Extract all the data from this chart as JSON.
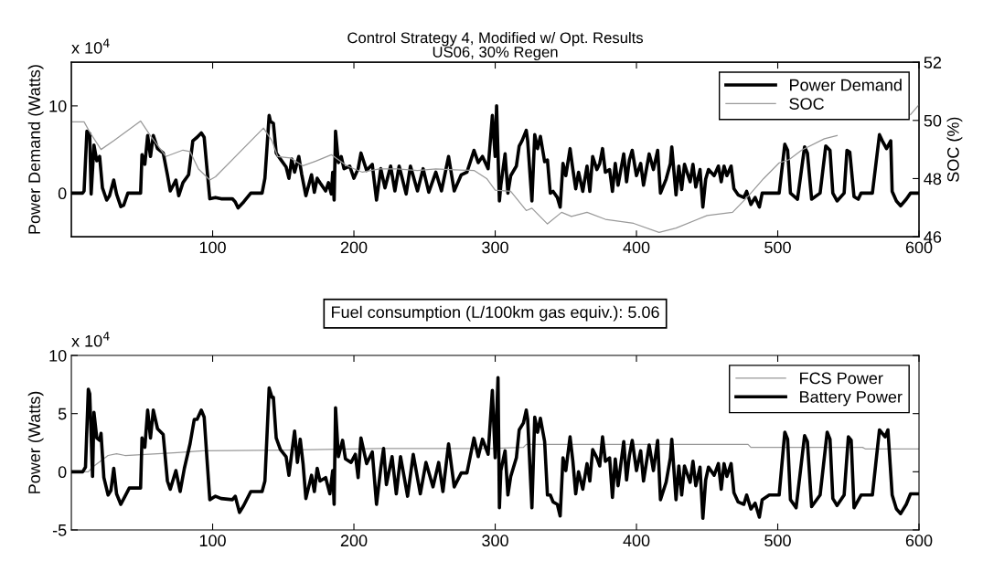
{
  "chart_data": [
    {
      "type": "line",
      "title": "Control Strategy 4, Modified w/ Opt. Results",
      "subtitle": "US06, 30% Regen",
      "ylabel": "Power Demand (Watts)",
      "y2label": "SOC (%)",
      "annotations": [
        "x 10$^{4}$"
      ],
      "xlim": [
        0,
        600
      ],
      "xticks": [
        100,
        200,
        300,
        400,
        500,
        600
      ],
      "ylim": [
        -5,
        15
      ],
      "yticks": [
        0,
        10
      ],
      "y2lim": [
        46,
        52
      ],
      "y2ticks": [
        46,
        48,
        50,
        52
      ],
      "grid": false,
      "legend": "top right",
      "line_style": "solid",
      "marker": "none",
      "series": [
        {
          "name": "Power Demand",
          "color": "#000000",
          "x": [
            1,
            8,
            9,
            11,
            13,
            14,
            16,
            18,
            20,
            22,
            25,
            27,
            30,
            32,
            35,
            37,
            40,
            49,
            50,
            52,
            54,
            56,
            58,
            61,
            65,
            68,
            70,
            74,
            76,
            79,
            83,
            86,
            89,
            92,
            94,
            96,
            98,
            102,
            106,
            114,
            116,
            118,
            122,
            127,
            135,
            137,
            140,
            141,
            143,
            145,
            148,
            152,
            154,
            156,
            158,
            161,
            163,
            166,
            170,
            172,
            174,
            176,
            180,
            182,
            184,
            185,
            186,
            187,
            189,
            191,
            193,
            197,
            200,
            203,
            205,
            209,
            213,
            216,
            219,
            222,
            226,
            229,
            232,
            237,
            240,
            245,
            249,
            253,
            258,
            262,
            267,
            271,
            276,
            280,
            285,
            288,
            291,
            295,
            298,
            300,
            301,
            303,
            304,
            307,
            309,
            311,
            315,
            317,
            319,
            322,
            323,
            326,
            328,
            330,
            332,
            335,
            337,
            339,
            341,
            344,
            346,
            348,
            350,
            353,
            355,
            357,
            359,
            362,
            365,
            367,
            369,
            372,
            374,
            376,
            378,
            381,
            383,
            385,
            387,
            391,
            393,
            395,
            397,
            400,
            403,
            405,
            409,
            412,
            415,
            417,
            421,
            424,
            425,
            428,
            430,
            432,
            434,
            438,
            440,
            442,
            445,
            447,
            449,
            451,
            455,
            458,
            460,
            462,
            464,
            467,
            469,
            472,
            476,
            478,
            481,
            484,
            487,
            489,
            492,
            501,
            505,
            507,
            509,
            514,
            519,
            521,
            524,
            530,
            534,
            537,
            539,
            542,
            547,
            549,
            551,
            554,
            557,
            559,
            567,
            572,
            574,
            577,
            580,
            581,
            584,
            587,
            591,
            594,
            600
          ],
          "values": [
            0,
            0,
            0.25,
            7.1,
            6.8,
            -0.1,
            5.5,
            3.7,
            4.2,
            0.6,
            -0.8,
            -0.3,
            1.5,
            -0.1,
            -1.55,
            -1.4,
            0,
            0,
            4.4,
            3.3,
            6.6,
            4.2,
            6.6,
            5.1,
            4.6,
            2.1,
            0.25,
            1.5,
            -0.3,
            1.2,
            2.1,
            6.0,
            6.4,
            6.9,
            6.4,
            2.8,
            -0.65,
            -0.5,
            -0.65,
            -0.65,
            -1.0,
            -1.7,
            -1.0,
            0,
            0,
            1.7,
            8.9,
            8.2,
            8.0,
            4.6,
            3.9,
            3.0,
            1.7,
            3.9,
            2.4,
            4.2,
            2.2,
            -0.3,
            2.1,
            0.1,
            1.7,
            1.2,
            0.25,
            1.2,
            -0.1,
            2.4,
            -0.8,
            7.1,
            3.5,
            4.2,
            2.8,
            3.1,
            1.7,
            2.8,
            4.6,
            2.6,
            3.3,
            -0.8,
            2.8,
            0.6,
            3.1,
            0.25,
            3.1,
            -0.1,
            3.1,
            0.25,
            2.8,
            0.1,
            2.4,
            0.25,
            4.2,
            0.25,
            2.1,
            2.4,
            4.9,
            3.5,
            4.2,
            2.8,
            8.9,
            4.2,
            10.0,
            -0.9,
            0.9,
            4.5,
            0,
            2.0,
            3.1,
            5.4,
            6.0,
            7.2,
            6.0,
            -0.9,
            6.7,
            5.1,
            6.5,
            3.6,
            3.8,
            0,
            0.2,
            -0.5,
            -1.6,
            3.4,
            2.0,
            5.1,
            2.7,
            0.5,
            2.4,
            0.2,
            3.1,
            0.2,
            4.2,
            2.7,
            3.4,
            5.1,
            2.4,
            2.7,
            0.2,
            3.4,
            0.9,
            4.5,
            1.3,
            3.8,
            4.9,
            2.0,
            3.4,
            0.9,
            4.5,
            2.7,
            4.9,
            0,
            1.6,
            3.4,
            5.3,
            -0.2,
            3.1,
            0.4,
            3.3,
            1.3,
            3.3,
            0.7,
            2.7,
            -1.6,
            1.6,
            2.7,
            2.0,
            3.1,
            1.3,
            3.1,
            2.0,
            3.1,
            0.5,
            -0.2,
            -0.5,
            0.2,
            -1.3,
            -0.5,
            -1.6,
            0,
            0,
            0,
            5.6,
            4.9,
            0,
            -0.7,
            5.3,
            4.6,
            -0.7,
            0,
            5.4,
            4.9,
            0,
            -0.9,
            0,
            4.9,
            4.7,
            -0.4,
            -0.7,
            0,
            0,
            6.7,
            6.0,
            5.1,
            6.0,
            0.2,
            -0.9,
            -1.45,
            -0.7,
            0,
            0
          ]
        },
        {
          "name": "SOC",
          "color": "#999999",
          "axis": "y2",
          "x": [
            1,
            9,
            13,
            21,
            30,
            49,
            56,
            67,
            79,
            84,
            90,
            98,
            102,
            136,
            142,
            146,
            155,
            164,
            173,
            184,
            195,
            206,
            218,
            231,
            245,
            258,
            271,
            285,
            294,
            300,
            311,
            322,
            326,
            337,
            347,
            354,
            365,
            378,
            398,
            416,
            428,
            450,
            468,
            479,
            490,
            501,
            508,
            517,
            533,
            542,
            582,
            594,
            600
          ],
          "values": [
            49.95,
            49.95,
            49.6,
            49.0,
            49.3,
            49.98,
            49.47,
            48.76,
            48.98,
            48.93,
            48.33,
            47.95,
            48.06,
            49.74,
            49.3,
            48.76,
            48.71,
            48.44,
            48.6,
            48.82,
            48.44,
            48.22,
            48.33,
            48.33,
            48.28,
            48.33,
            48.3,
            48.28,
            48.0,
            47.6,
            47.56,
            46.9,
            46.98,
            46.44,
            46.84,
            46.7,
            46.84,
            46.6,
            46.46,
            46.15,
            46.3,
            46.73,
            46.84,
            47.39,
            48.0,
            48.54,
            48.65,
            48.98,
            49.37,
            49.48,
            null,
            50.2,
            50.54
          ]
        }
      ]
    },
    {
      "type": "line",
      "ylabel": "Power (Watts)",
      "annotations": [
        "x 10$^{4}$",
        "Fuel consumption (L/100km gas equiv.): 5.06"
      ],
      "xlim": [
        0,
        600
      ],
      "xticks": [
        100,
        200,
        300,
        400,
        500,
        600
      ],
      "ylim": [
        -5,
        10
      ],
      "yticks": [
        -5,
        0,
        5,
        10
      ],
      "grid": false,
      "legend": "top right",
      "line_style": "solid",
      "marker": "none",
      "series": [
        {
          "name": "FCS Power",
          "color": "#999999",
          "x": [
            1,
            12,
            15,
            26,
            32,
            38,
            61,
            75,
            93,
            151,
            218,
            298,
            320,
            322,
            479,
            481,
            560,
            562,
            600
          ],
          "values": [
            0,
            0,
            0.4,
            1.4,
            1.55,
            1.4,
            1.55,
            1.65,
            1.8,
            1.87,
            2.0,
            2.0,
            2.1,
            2.35,
            2.35,
            2.1,
            2.1,
            1.97,
            1.97
          ]
        },
        {
          "name": "Battery Power",
          "color": "#000000",
          "x": [
            1,
            8,
            10,
            12,
            13,
            15,
            16,
            18,
            20,
            21,
            23,
            26,
            28,
            30,
            32,
            35,
            38,
            41,
            49,
            50,
            52,
            54,
            56,
            58,
            61,
            65,
            68,
            70,
            74,
            77,
            80,
            84,
            87,
            89,
            92,
            94,
            96,
            98,
            102,
            106,
            114,
            116,
            119,
            122,
            127,
            135,
            137,
            140,
            142,
            143,
            145,
            148,
            152,
            154,
            158,
            160,
            162,
            164,
            166,
            170,
            172,
            174,
            176,
            180,
            183,
            185,
            186,
            187,
            189,
            192,
            194,
            198,
            201,
            203,
            205,
            209,
            213,
            216,
            219,
            221,
            223,
            227,
            230,
            233,
            238,
            242,
            247,
            251,
            256,
            260,
            263,
            267,
            271,
            276,
            280,
            285,
            288,
            291,
            295,
            298,
            300,
            302,
            303,
            304,
            307,
            309,
            311,
            315,
            317,
            320,
            322,
            323,
            326,
            328,
            330,
            332,
            335,
            337,
            339,
            341,
            344,
            346,
            348,
            350,
            353,
            355,
            357,
            359,
            362,
            365,
            367,
            369,
            372,
            374,
            376,
            378,
            381,
            383,
            385,
            387,
            391,
            393,
            395,
            397,
            400,
            403,
            405,
            409,
            412,
            415,
            417,
            421,
            424,
            425,
            428,
            430,
            432,
            434,
            438,
            440,
            442,
            445,
            447,
            449,
            451,
            455,
            458,
            460,
            462,
            464,
            467,
            469,
            472,
            476,
            478,
            481,
            484,
            487,
            489,
            494,
            501,
            505,
            507,
            509,
            513,
            519,
            521,
            524,
            530,
            535,
            537,
            539,
            542,
            547,
            550,
            552,
            554,
            559,
            567,
            572,
            576,
            578,
            581,
            584,
            587,
            591,
            594,
            600
          ],
          "values": [
            0,
            0,
            0.4,
            7.1,
            6.7,
            -0.4,
            5.1,
            2.9,
            2.7,
            3.3,
            -0.5,
            -2.0,
            -1.6,
            0.3,
            -1.9,
            -2.8,
            -2.1,
            -1.4,
            -1.4,
            2.9,
            2.1,
            5.3,
            2.9,
            5.3,
            3.7,
            3.2,
            -0.8,
            -1.5,
            0.1,
            -1.7,
            0.3,
            2.4,
            4.5,
            4.5,
            5.3,
            4.7,
            1.1,
            -2.4,
            -2.1,
            -2.3,
            -2.4,
            -2.1,
            -3.5,
            -2.9,
            -1.7,
            -1.7,
            -0.8,
            7.2,
            6.4,
            6.4,
            2.9,
            1.9,
            1.3,
            -0.3,
            3.5,
            0.8,
            2.8,
            0.7,
            -2.3,
            -0.3,
            -1.7,
            0.3,
            -0.8,
            -0.5,
            -1.9,
            0.1,
            -2.8,
            5.5,
            1.3,
            2.7,
            1.1,
            0.8,
            1.5,
            -0.5,
            2.9,
            0.7,
            1.7,
            -2.8,
            0.3,
            2.0,
            -1.1,
            1.3,
            -1.9,
            1.3,
            -2.1,
            1.5,
            -1.9,
            0.8,
            -1.3,
            0.8,
            -1.7,
            2.4,
            -1.3,
            -0.1,
            -0.1,
            2.9,
            1.3,
            2.8,
            1.5,
            7.0,
            1.2,
            8.1,
            -3.1,
            0.1,
            1.8,
            -2.0,
            -0.4,
            1.2,
            3.6,
            4.2,
            5.3,
            4.5,
            -3.1,
            4.7,
            3.4,
            4.6,
            2.6,
            -2.0,
            -2.0,
            -2.6,
            -2.8,
            -3.8,
            1.2,
            0.1,
            3.0,
            0.9,
            -1.9,
            0,
            -1.5,
            0.7,
            -0.8,
            1.9,
            1.2,
            0.5,
            3.0,
            0.9,
            1.2,
            -2.2,
            1.1,
            -1.2,
            2.6,
            -0.7,
            1.4,
            2.7,
            0.1,
            1.8,
            -0.8,
            2.3,
            0.1,
            2.7,
            -2.4,
            -0.9,
            1.2,
            2.8,
            -2.4,
            0.5,
            -2.0,
            0.5,
            -0.9,
            0.9,
            -1.2,
            0.4,
            -4.0,
            -0.7,
            0.4,
            -0.3,
            0.7,
            -1.5,
            0.7,
            -0.4,
            0.7,
            -1.8,
            -2.6,
            -2.8,
            -2.0,
            -3.2,
            -2.7,
            -3.9,
            -2.4,
            -2.0,
            -2.0,
            3.4,
            2.8,
            -2.4,
            -3.1,
            3.1,
            2.6,
            -3.0,
            -2.0,
            3.4,
            2.8,
            -2.3,
            -2.9,
            -2.0,
            3.0,
            2.7,
            -3.1,
            -2.0,
            -2.0,
            3.6,
            3.0,
            3.6,
            -2.0,
            -3.2,
            -3.6,
            -2.8,
            -1.9,
            -1.9
          ]
        }
      ]
    }
  ]
}
